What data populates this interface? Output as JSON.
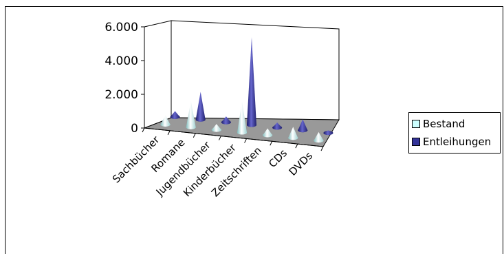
{
  "chart_data": {
    "type": "bar",
    "style": "3d-cone",
    "categories": [
      "Sachbücher",
      "Romane",
      "Jugendbücher",
      "Kinderbücher",
      "Zeitschriften",
      "CDs",
      "DVDs"
    ],
    "series": [
      {
        "name": "Bestand",
        "values": [
          550,
          1550,
          350,
          1850,
          400,
          650,
          500
        ]
      },
      {
        "name": "Entleihungen",
        "values": [
          350,
          1650,
          350,
          5200,
          300,
          650,
          150
        ]
      }
    ],
    "yticks": [
      "0",
      "2.000",
      "4.000",
      "6.000"
    ],
    "ylim": [
      0,
      6000
    ],
    "legend_position": "right",
    "grid": false,
    "colors": {
      "bestand": "#ccffff",
      "entleihungen": "#333399",
      "floor": "#999999"
    }
  }
}
